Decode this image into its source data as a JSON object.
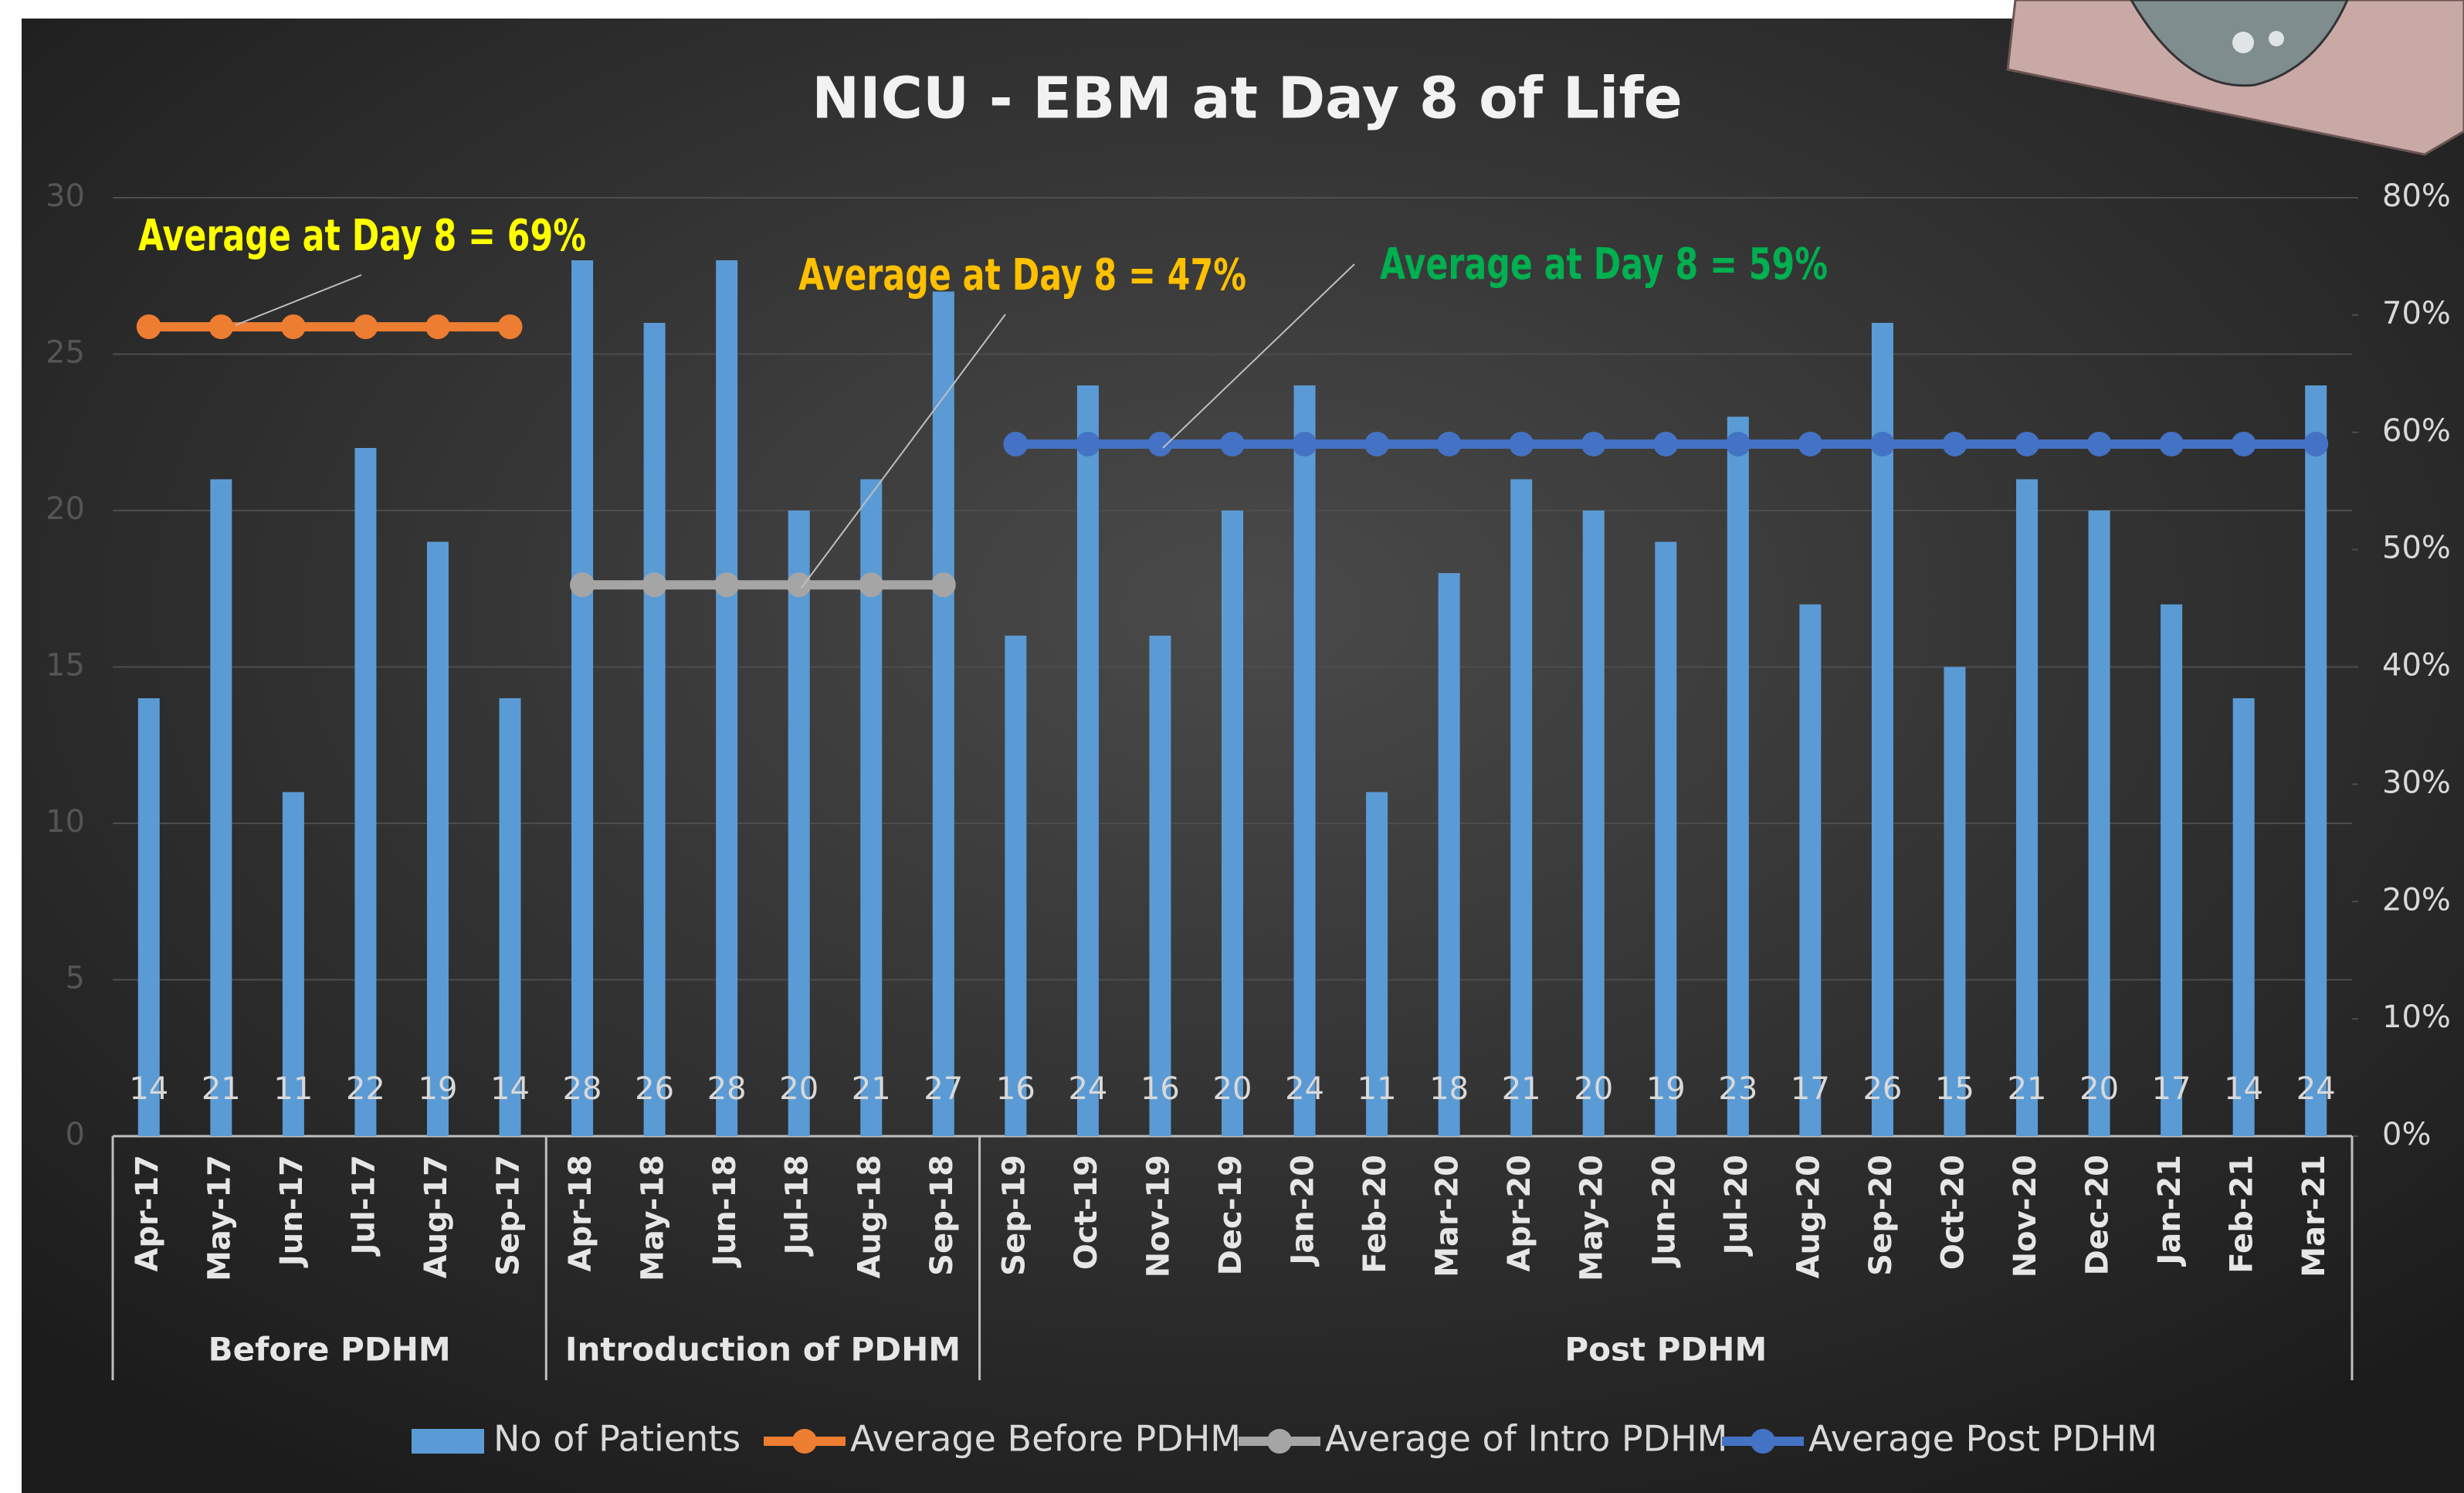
{
  "chart_data": {
    "type": "bar-line",
    "title": "NICU - EBM at Day 8 of Life",
    "categories": [
      "Apr-17",
      "May-17",
      "Jun-17",
      "Jul-17",
      "Aug-17",
      "Sep-17",
      "Apr-18",
      "May-18",
      "Jun-18",
      "Jul-18",
      "Aug-18",
      "Sep-18",
      "Sep-19",
      "Oct-19",
      "Nov-19",
      "Dec-19",
      "Jan-20",
      "Feb-20",
      "Mar-20",
      "Apr-20",
      "May-20",
      "Jun-20",
      "Jul-20",
      "Aug-20",
      "Sep-20",
      "Oct-20",
      "Nov-20",
      "Dec-20",
      "Jan-21",
      "Feb-21",
      "Mar-21"
    ],
    "groups": [
      {
        "label": "Before PDHM",
        "start": 0,
        "end": 5
      },
      {
        "label": "Introduction of PDHM",
        "start": 6,
        "end": 11
      },
      {
        "label": "Post PDHM",
        "start": 12,
        "end": 30
      }
    ],
    "series": [
      {
        "name": "No of Patients",
        "type": "bar",
        "color": "#5b9bd5",
        "values": [
          14,
          21,
          11,
          22,
          19,
          14,
          28,
          26,
          28,
          20,
          21,
          27,
          16,
          24,
          16,
          20,
          24,
          11,
          18,
          21,
          20,
          19,
          23,
          17,
          26,
          15,
          21,
          20,
          17,
          14,
          24
        ]
      },
      {
        "name": "Average Before PDHM",
        "type": "line",
        "axis": "y2",
        "color": "#ed7d31",
        "values": [
          69,
          69,
          69,
          69,
          69,
          69,
          null,
          null,
          null,
          null,
          null,
          null,
          null,
          null,
          null,
          null,
          null,
          null,
          null,
          null,
          null,
          null,
          null,
          null,
          null,
          null,
          null,
          null,
          null,
          null,
          null
        ]
      },
      {
        "name": "Average of Intro PDHM",
        "type": "line",
        "axis": "y2",
        "color": "#a5a5a5",
        "values": [
          null,
          null,
          null,
          null,
          null,
          null,
          47,
          47,
          47,
          47,
          47,
          47,
          null,
          null,
          null,
          null,
          null,
          null,
          null,
          null,
          null,
          null,
          null,
          null,
          null,
          null,
          null,
          null,
          null,
          null,
          null
        ]
      },
      {
        "name": "Average Post PDHM",
        "type": "line",
        "axis": "y2",
        "color": "#4472c4",
        "values": [
          null,
          null,
          null,
          null,
          null,
          null,
          null,
          null,
          null,
          null,
          null,
          null,
          59,
          59,
          59,
          59,
          59,
          59,
          59,
          59,
          59,
          59,
          59,
          59,
          59,
          59,
          59,
          59,
          59,
          59,
          59
        ]
      }
    ],
    "ylim": [
      0,
      30
    ],
    "yticks": [
      0,
      5,
      10,
      15,
      20,
      25,
      30
    ],
    "y2lim": [
      0,
      80
    ],
    "y2ticks": [
      {
        "value": 0,
        "label": "0%"
      },
      {
        "value": 10,
        "label": "10%"
      },
      {
        "value": 20,
        "label": "20%"
      },
      {
        "value": 30,
        "label": "30%"
      },
      {
        "value": 40,
        "label": "40%"
      },
      {
        "value": 50,
        "label": "50%"
      },
      {
        "value": 60,
        "label": "60%"
      },
      {
        "value": 70,
        "label": "70%"
      },
      {
        "value": 80,
        "label": "80%"
      }
    ],
    "grid": true,
    "legend": "bottom",
    "annotations": [
      {
        "text": "Average at Day 8 = 69%",
        "color": "#ffff00"
      },
      {
        "text": "Average at Day 8 = 47%",
        "color": "#ffc000"
      },
      {
        "text": "Average at Day 8 = 59%",
        "color": "#00b050"
      }
    ]
  }
}
